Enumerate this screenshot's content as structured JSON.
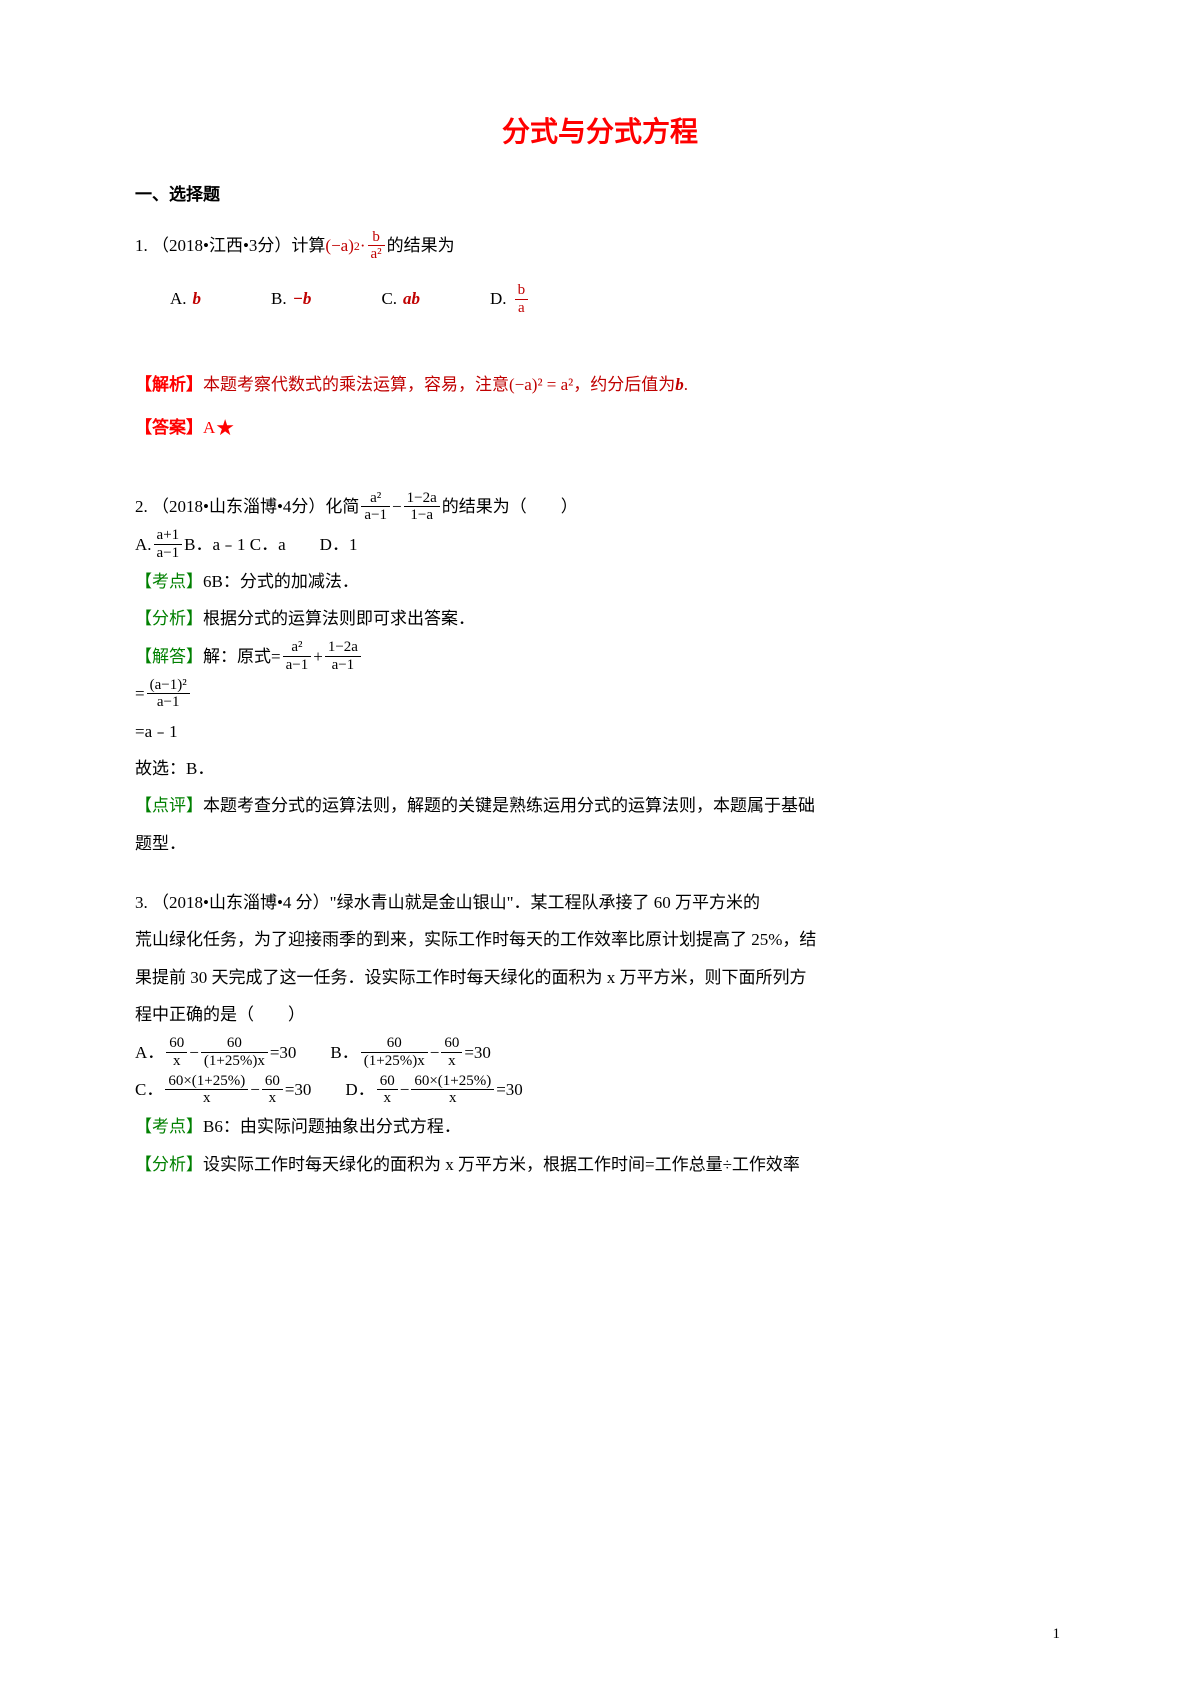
{
  "title": "分式与分式方程",
  "section1": "一、选择题",
  "q1": {
    "stem_prefix": "1. （2018•江西•3分）计算",
    "stem_suffix": " 的结果为",
    "expr_prefix": "(−a)",
    "expr_sup": "2",
    "expr_dot": "·",
    "frac_num": "b",
    "frac_den": "a²",
    "optA_label": "A.",
    "optA": "b",
    "optB_label": "B.",
    "optB": "−b",
    "optC_label": "C.",
    "optC": "ab",
    "optD_label": "D.",
    "optD_num": "b",
    "optD_den": "a",
    "analysis_label": "【解析】",
    "analysis_text": " 本题考察代数式的乘法运算，容易，注意",
    "analysis_eq_l": "(−a)² = a²",
    "analysis_text2": "，约分后值为",
    "analysis_val": "b",
    "analysis_end": ".",
    "answer_label": "【答案】",
    "answer_text": "  A",
    "answer_star": "★"
  },
  "q2": {
    "stem_prefix": "2. （2018•山东淄博•4分）化简",
    "f1_num": "a²",
    "f1_den": "a−1",
    "minus": "−",
    "f2_num": "1−2a",
    "f2_den": "1−a",
    "stem_suffix": "的结果为（　　）",
    "optA_label": "A.",
    "optA_num": "a+1",
    "optA_den": "a−1",
    "optB": " B．a﹣1 C．a　　D．1",
    "kd_label": "【考点】",
    "kd_text": "6B：分式的加减法．",
    "fx_label": "【分析】",
    "fx_text": "根据分式的运算法则即可求出答案．",
    "jd_label": "【解答】",
    "jd_prefix": "解：原式=",
    "s1_f1_num": "a²",
    "s1_f1_den": "a−1",
    "s1_plus": "+",
    "s1_f2_num": "1−2a",
    "s1_f2_den": "a−1",
    "s2_eq": "=",
    "s2_num": "(a−1)²",
    "s2_den": "a−1",
    "s3": "=a﹣1",
    "s4": "故选：B．",
    "dp_label": "【点评】",
    "dp_text1": "本题考查分式的运算法则，解题的关键是熟练运用分式的运算法则，本题属于基础",
    "dp_text2": "题型．"
  },
  "q3": {
    "l1": "3. （2018•山东淄博•4 分）\"绿水青山就是金山银山\"．某工程队承接了 60 万平方米的",
    "l2": "荒山绿化任务，为了迎接雨季的到来，实际工作时每天的工作效率比原计划提高了 25%，结",
    "l3": "果提前 30 天完成了这一任务．设实际工作时每天绿化的面积为 x 万平方米，则下面所列方",
    "l4": "程中正确的是（　　）",
    "A_label": "A．",
    "A_f1_num": "60",
    "A_f1_den": "x",
    "A_minus": "−",
    "A_f2_num": "60",
    "A_f2_den": "(1+25%)x",
    "A_eq": "=30",
    "B_label": "　　B．",
    "B_f1_num": "60",
    "B_f1_den": "(1+25%)x",
    "B_f2_num": "60",
    "B_f2_den": "x",
    "C_label": "C．",
    "C_f1_num": "60×(1+25%)",
    "C_f1_den": "x",
    "C_f2_num": "60",
    "C_f2_den": "x",
    "D_label": "　　D．",
    "D_f1_num": "60",
    "D_f1_den": "x",
    "D_f2_num": "60×(1+25%)",
    "D_f2_den": "x",
    "kd_label": "【考点】",
    "kd_text": "B6：由实际问题抽象出分式方程．",
    "fx_label": "【分析】",
    "fx_text": "设实际工作时每天绿化的面积为 x 万平方米，根据工作时间=工作总量÷工作效率"
  },
  "page_number": "1"
}
